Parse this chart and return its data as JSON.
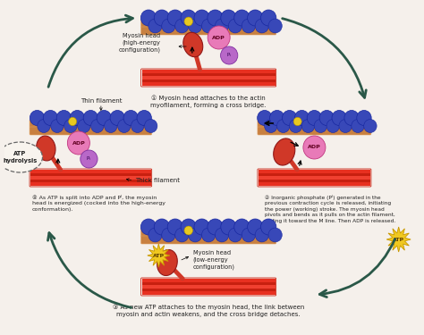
{
  "background_color": "#f5f0eb",
  "molecule_colors": {
    "adp": "#e87ab8",
    "pi": "#b868c8",
    "atp_star": "#f0c820",
    "atp_star_edge": "#c89800",
    "actin": "#3848b8",
    "actin_edge": "#1828a0",
    "myosin_head": "#d03828",
    "myosin_head_edge": "#901818",
    "filament_red1": "#e83020",
    "filament_red2": "#c82010",
    "filament_red3": "#f04030",
    "thin_bar": "#c88040",
    "thin_bar2": "#e0a060",
    "yellow_dot": "#e8c820"
  },
  "arrow_color": "#2a5848",
  "text_color": "#222222",
  "step_num_color": "#c04020",
  "step1_label": "Myosin head attaches to the actin\nmyofilament, forming a cross bridge.",
  "step2_label": "Inorganic phosphate (Pᴵ) generated in the\nprevious contraction cycle is released, initiating\nthe power (working) stroke. The myosin head\npivots and bends as it pulls on the actin filament,\nsliding it toward the M line. Then ADP is released.",
  "step3_label": "As new ATP attaches to the myosin head, the link between\nmyosin and actin weakens, and the cross bridge detaches.",
  "step4_label": "As ATP is split into ADP and Pᴵ, the myosin\nhead is energized (cocked into the high-energy\nconformation).",
  "label_myosin_high": "Myosin head\n(high-energy\nconfiguration)",
  "label_myosin_low": "Myosin head\n(low-energy\nconfiguration)",
  "label_thin": "Thin filament",
  "label_thick": "Thick filament",
  "label_atp_hydrolysis": "ATP\nhydrolysis"
}
